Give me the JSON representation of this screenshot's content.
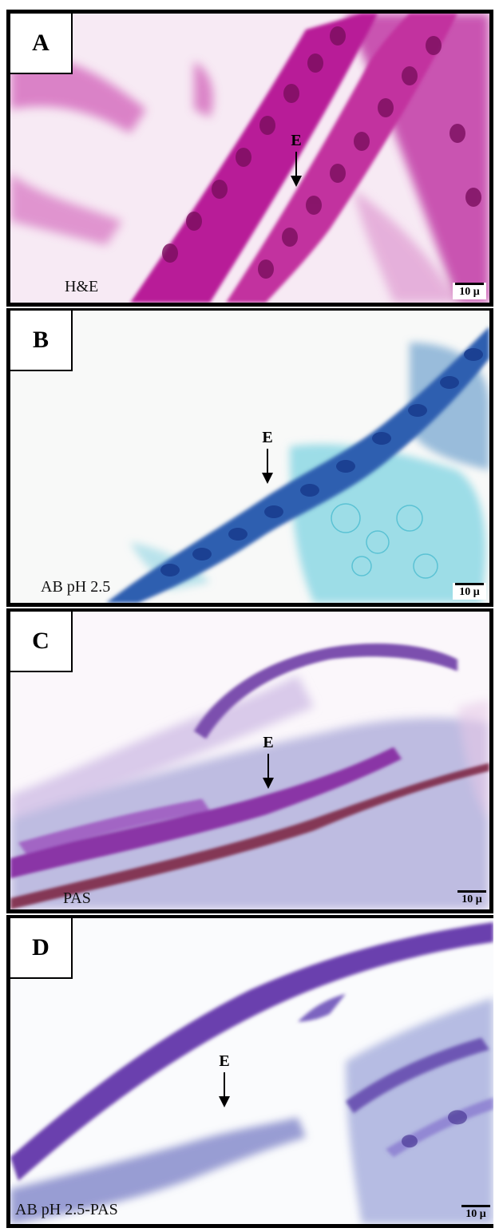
{
  "panels": [
    {
      "letter": "A",
      "stain": "H&E",
      "arrow_label": "E",
      "scale_label": "10 μ"
    },
    {
      "letter": "B",
      "stain": "AB pH 2.5",
      "arrow_label": "E",
      "scale_label": "10 μ"
    },
    {
      "letter": "C",
      "stain": "PAS",
      "arrow_label": "E",
      "scale_label": "10 μ"
    },
    {
      "letter": "D",
      "stain": "AB pH 2.5-PAS",
      "arrow_label": "E",
      "scale_label": "10 μ"
    }
  ]
}
